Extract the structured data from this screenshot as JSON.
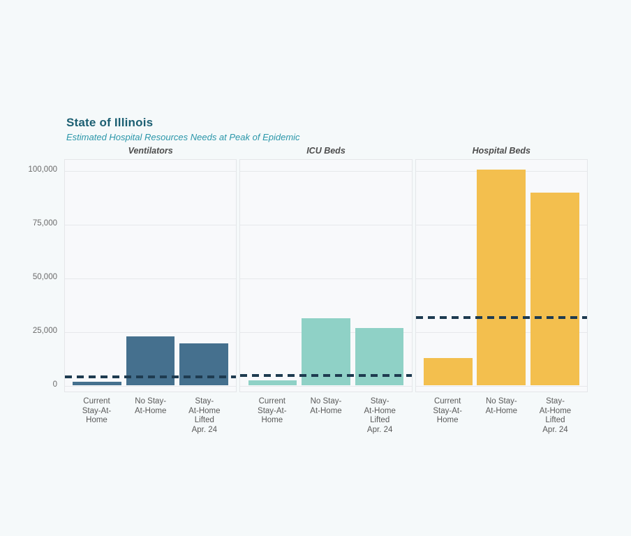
{
  "header": {
    "title": "State of Illinois",
    "subtitle": "Estimated Hospital Resources Needs at Peak of Epidemic",
    "title_color": "#1c5f72",
    "subtitle_color": "#2a96a9"
  },
  "chart_data": {
    "type": "bar",
    "title": "State of Illinois",
    "subtitle": "Estimated Hospital Resources Needs at Peak of Epidemic",
    "categories": [
      "Current Stay-At-Home",
      "No Stay-At-Home",
      "Stay-At-Home Lifted Apr. 24"
    ],
    "category_label_lines": [
      [
        "Current",
        "Stay-At-",
        "Home"
      ],
      [
        "No Stay-",
        "At-Home"
      ],
      [
        "Stay-",
        "At-Home",
        "Lifted",
        "Apr. 24"
      ]
    ],
    "y_ticks": [
      0,
      25000,
      50000,
      75000,
      100000
    ],
    "y_tick_labels": [
      "0",
      "25,000",
      "50,000",
      "75,000",
      "100,000"
    ],
    "ylim": [
      0,
      106000
    ],
    "grid": true,
    "legend_position": "none",
    "facets": [
      {
        "name": "Ventilators",
        "bar_color": "#45708e",
        "values": [
          1800,
          22900,
          19600
        ],
        "capacity_line": 4200
      },
      {
        "name": "ICU Beds",
        "bar_color": "#8fd1c6",
        "values": [
          2400,
          31400,
          27000
        ],
        "capacity_line": 4600
      },
      {
        "name": "Hospital Beds",
        "bar_color": "#f3bf4e",
        "values": [
          12700,
          100700,
          90000
        ],
        "capacity_line": 31800
      }
    ],
    "capacity_line_color": "#1e3b50",
    "panel_background": "#f8f9fb",
    "page_background": "#f5f9fa"
  }
}
